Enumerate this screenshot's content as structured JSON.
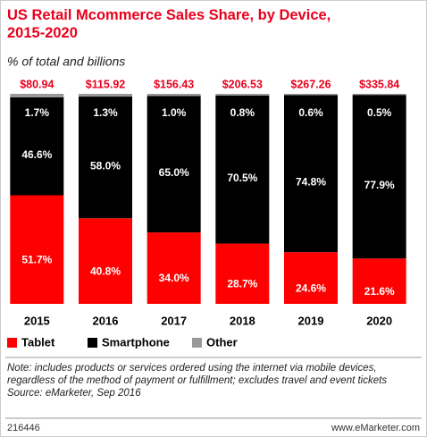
{
  "chart_data": {
    "type": "stacked_bar",
    "title": "US Retail Mcommerce Sales Share, by Device, 2015-2020",
    "subtitle": "% of total and billions",
    "categories": [
      "2015",
      "2016",
      "2017",
      "2018",
      "2019",
      "2020"
    ],
    "series": [
      {
        "name": "Tablet",
        "color": "#ff0000",
        "values": [
          51.7,
          40.8,
          34,
          28.7,
          24.6,
          21.6
        ],
        "value_labels": [
          "51.7%",
          "40.8%",
          "34.0%",
          "28.7%",
          "24.6%",
          "21.6%"
        ]
      },
      {
        "name": "Smartphone",
        "color": "#000000",
        "values": [
          46.6,
          58,
          65,
          70.5,
          74.8,
          77.9
        ],
        "value_labels": [
          "46.6%",
          "58.0%",
          "65.0%",
          "70.5%",
          "74.8%",
          "77.9%"
        ]
      },
      {
        "name": "Other",
        "color": "#999999",
        "values": [
          1.7,
          1.3,
          1,
          0.8,
          0.6,
          0.5
        ],
        "value_labels": [
          "1.7%",
          "1.3%",
          "1.0%",
          "0.8%",
          "0.6%",
          "0.5%"
        ]
      }
    ],
    "totals": {
      "values": [
        80.94,
        115.92,
        156.43,
        206.53,
        267.26,
        335.84
      ],
      "value_labels": [
        "$80.94",
        "$115.92",
        "$156.43",
        "$206.53",
        "$267.26",
        "$335.84"
      ]
    },
    "note": "Note: includes products or services ordered using the internet via mobile devices, regardless of the method of payment or fulfillment; excludes travel and event tickets",
    "source": "Source: eMarketer, Sep 2016",
    "chart_id": "216446",
    "website": "www.eMarketer.com"
  }
}
